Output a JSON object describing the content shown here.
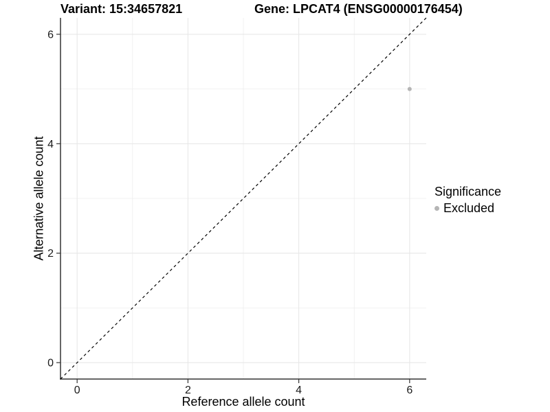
{
  "titles": {
    "variant": "Variant: 15:34657821",
    "gene": "Gene: LPCAT4 (ENSG00000176454)"
  },
  "chart_data": {
    "type": "scatter",
    "title_left": "Variant: 15:34657821",
    "title_right": "Gene: LPCAT4 (ENSG00000176454)",
    "xlabel": "Reference allele count",
    "ylabel": "Alternative allele count",
    "xlim": [
      -0.3,
      6.3
    ],
    "ylim": [
      -0.3,
      6.3
    ],
    "x_ticks": [
      0,
      2,
      4,
      6
    ],
    "y_ticks": [
      0,
      2,
      4,
      6
    ],
    "x_minor_gridlines": [
      1,
      3,
      5
    ],
    "y_minor_gridlines": [
      1,
      3,
      5
    ],
    "grid": "major and minor, light grey on white",
    "points": [
      {
        "x": 6,
        "y": 5,
        "series": "Excluded"
      }
    ],
    "reference_line": {
      "kind": "identity y=x",
      "style": "dashed",
      "x1": -0.3,
      "y1": -0.3,
      "x2": 6.3,
      "y2": 6.3
    },
    "legend": {
      "title": "Significance",
      "position": "right",
      "entries": [
        {
          "label": "Excluded",
          "color": "#b5b5b5"
        }
      ]
    }
  },
  "colors": {
    "background": "#ffffff",
    "grid_major": "#e7e7e7",
    "grid_minor": "#ededed",
    "axis_line": "#333333",
    "tick_mark": "#333333",
    "tick_text": "#1a1a1a",
    "title_text": "#000000",
    "point": "#b5b5b5",
    "reference_line": "#000000"
  }
}
